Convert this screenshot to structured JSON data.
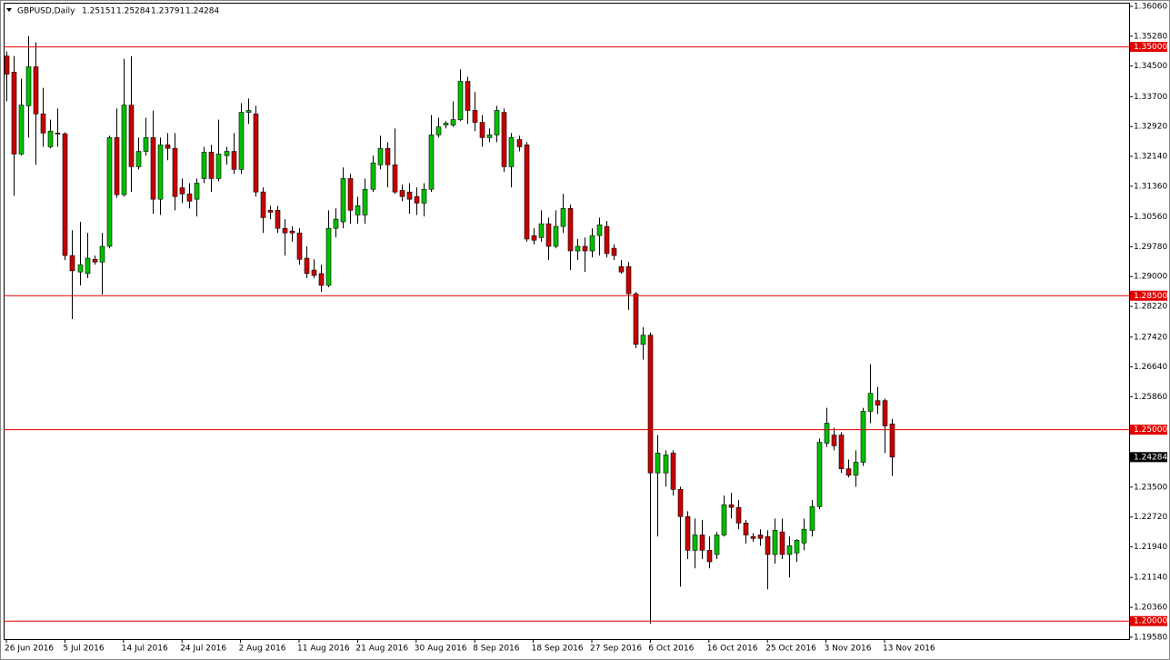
{
  "chart_data": {
    "type": "candlestick",
    "title": "GBPUSD,Daily",
    "categories": [
      "26 Jun 2016",
      null,
      null,
      null,
      null,
      null,
      null,
      null,
      "5 Jul 2016",
      null,
      null,
      null,
      null,
      null,
      null,
      null,
      "14 Jul 2016",
      null,
      null,
      null,
      null,
      null,
      null,
      null,
      "24 Jul 2016",
      null,
      null,
      null,
      null,
      null,
      null,
      null,
      "2 Aug 2016",
      null,
      null,
      null,
      null,
      null,
      null,
      null,
      "11 Aug 2016",
      null,
      null,
      null,
      null,
      null,
      null,
      null,
      "21 Aug 2016",
      null,
      null,
      null,
      null,
      null,
      null,
      null,
      "30 Aug 2016",
      null,
      null,
      null,
      null,
      null,
      null,
      null,
      "8 Sep 2016",
      null,
      null,
      null,
      null,
      null,
      null,
      null,
      "18 Sep 2016",
      null,
      null,
      null,
      null,
      null,
      null,
      null,
      "27 Sep 2016",
      null,
      null,
      null,
      null,
      null,
      null,
      null,
      "6 Oct 2016",
      null,
      null,
      null,
      null,
      null,
      null,
      null,
      "16 Oct 2016",
      null,
      null,
      null,
      null,
      null,
      null,
      null,
      "25 Oct 2016",
      null,
      null,
      null,
      null,
      null,
      null,
      null,
      "3 Nov 2016",
      null,
      null,
      null,
      null,
      null,
      null,
      null,
      "13 Nov 2016",
      null
    ],
    "open": [
      1.3476,
      1.3434,
      1.322,
      1.3346,
      1.3448,
      1.3325,
      1.3239,
      1.3275,
      1.3273,
      1.2955,
      1.2912,
      1.2908,
      1.2945,
      1.2938,
      1.2979,
      1.3263,
      1.3114,
      1.3348,
      1.3187,
      1.3227,
      1.3263,
      1.3102,
      1.3244,
      1.3235,
      1.3132,
      1.3116,
      1.3102,
      1.3156,
      1.3225,
      1.3156,
      1.3216,
      1.3227,
      1.318,
      1.3329,
      1.3325,
      1.3121,
      1.3073,
      1.3073,
      1.3026,
      1.3019,
      1.3014,
      1.2948,
      1.2917,
      1.2908,
      1.2877,
      1.3026,
      1.3043,
      1.3156,
      1.3061,
      1.3061,
      1.3128,
      1.3192,
      1.3235,
      1.3192,
      1.3125,
      1.3121,
      1.3109,
      1.3092,
      1.3128,
      1.327,
      1.3296,
      1.3296,
      1.331,
      1.341,
      1.3334,
      1.3303,
      1.3263,
      1.327,
      1.3329,
      1.3187,
      1.3258,
      1.3244,
      1.3007,
      1.3002,
      1.3038,
      1.2979,
      1.3031,
      1.3078,
      1.2967,
      1.2979,
      1.2967,
      1.3007,
      1.3031,
      1.2974,
      1.2926,
      1.2926,
      1.2855,
      1.2723,
      1.2747,
      1.2387,
      1.2387,
      1.2439,
      1.2344,
      1.2273,
      1.2185,
      1.2225,
      1.2185,
      1.2174,
      1.2225,
      1.2304,
      1.2297,
      1.2256,
      1.2221,
      1.2225,
      1.2221,
      1.2174,
      1.2233,
      1.2174,
      1.2178,
      1.2204,
      1.2237,
      1.2299,
      1.2465,
      1.2486,
      1.2486,
      1.2398,
      1.2381,
      1.2415,
      1.2548,
      1.2576,
      1.2576,
      1.25151
    ],
    "high": [
      1.3488,
      1.3476,
      1.3417,
      1.3528,
      1.3512,
      1.3393,
      1.331,
      1.3339,
      1.3277,
      1.3021,
      1.3043,
      1.3014,
      1.2955,
      1.3014,
      1.3268,
      1.3339,
      1.3469,
      1.3476,
      1.3263,
      1.3315,
      1.3334,
      1.3263,
      1.3275,
      1.3275,
      1.3156,
      1.3144,
      1.3156,
      1.3239,
      1.3244,
      1.331,
      1.3239,
      1.3275,
      1.3353,
      1.3365,
      1.3346,
      1.3133,
      1.3085,
      1.3085,
      1.305,
      1.3031,
      1.3026,
      1.2979,
      1.2945,
      1.2931,
      1.3073,
      1.3078,
      1.3185,
      1.3168,
      1.3109,
      1.3156,
      1.3216,
      1.3268,
      1.3251,
      1.3287,
      1.314,
      1.3144,
      1.3133,
      1.3144,
      1.3322,
      1.3315,
      1.3306,
      1.3358,
      1.3441,
      1.3422,
      1.3382,
      1.3322,
      1.3287,
      1.3346,
      1.3339,
      1.3275,
      1.3268,
      1.3251,
      1.3026,
      1.3073,
      1.3054,
      1.3073,
      1.3116,
      1.3088,
      1.2998,
      1.3002,
      1.3026,
      1.3054,
      1.3045,
      1.2984,
      1.2943,
      1.2938,
      1.286,
      1.2768,
      1.2754,
      1.2486,
      1.2446,
      1.2446,
      1.2351,
      1.2287,
      1.2268,
      1.2264,
      1.2221,
      1.2233,
      1.2328,
      1.2335,
      1.2316,
      1.2264,
      1.223,
      1.224,
      1.2237,
      1.2268,
      1.2268,
      1.2221,
      1.2214,
      1.2268,
      1.2316,
      1.2477,
      1.2557,
      1.2505,
      1.2493,
      1.2422,
      1.2446,
      1.2557,
      1.2671,
      1.2612,
      1.2581,
      1.25284
    ],
    "low": [
      1.3358,
      1.3111,
      1.3216,
      1.3263,
      1.3192,
      1.3239,
      1.3235,
      1.3239,
      1.2943,
      1.2789,
      1.2877,
      1.2896,
      1.2931,
      1.2853,
      1.2974,
      1.3106,
      1.3109,
      1.3121,
      1.318,
      1.3216,
      1.3064,
      1.3061,
      1.3204,
      1.3073,
      1.3092,
      1.3078,
      1.3057,
      1.3144,
      1.3121,
      1.3149,
      1.3192,
      1.3168,
      1.3168,
      1.3299,
      1.3109,
      1.3014,
      1.305,
      1.3014,
      1.2955,
      1.2991,
      1.2931,
      1.2896,
      1.2896,
      1.286,
      1.2872,
      1.3002,
      1.3026,
      1.3038,
      1.3038,
      1.3038,
      1.3121,
      1.318,
      1.3133,
      1.3116,
      1.3097,
      1.3064,
      1.3061,
      1.3057,
      1.3121,
      1.3263,
      1.3287,
      1.3291,
      1.3306,
      1.3299,
      1.328,
      1.3239,
      1.3251,
      1.3251,
      1.3173,
      1.3133,
      1.3227,
      1.2991,
      1.2984,
      1.2991,
      1.2943,
      1.2974,
      1.3014,
      1.2917,
      1.2943,
      1.2912,
      1.295,
      1.2955,
      1.295,
      1.2943,
      1.2908,
      1.2813,
      1.2713,
      1.2683,
      1.1993,
      1.2221,
      1.2351,
      1.2328,
      1.209,
      1.2162,
      1.2138,
      1.2162,
      1.2138,
      1.2162,
      1.2221,
      1.2268,
      1.224,
      1.2202,
      1.2207,
      1.2197,
      1.2083,
      1.215,
      1.2162,
      1.2114,
      1.2155,
      1.2185,
      1.2221,
      1.2292,
      1.2455,
      1.2446,
      1.2387,
      1.2375,
      1.2351,
      1.2405,
      1.2517,
      1.2541,
      1.2439,
      1.23791
    ],
    "close": [
      1.3429,
      1.322,
      1.3348,
      1.3448,
      1.3325,
      1.3275,
      1.328,
      1.3273,
      1.2955,
      1.2915,
      1.2931,
      1.2948,
      1.2938,
      1.2979,
      1.3263,
      1.3114,
      1.3348,
      1.3187,
      1.3227,
      1.3263,
      1.3102,
      1.3244,
      1.3235,
      1.3109,
      1.3116,
      1.3097,
      1.3144,
      1.3225,
      1.3156,
      1.322,
      1.3227,
      1.318,
      1.3329,
      1.3334,
      1.3121,
      1.3054,
      1.3068,
      1.3026,
      1.3014,
      1.3014,
      1.2945,
      1.2908,
      1.2903,
      1.2877,
      1.3026,
      1.305,
      1.3156,
      1.3073,
      1.3085,
      1.3128,
      1.3197,
      1.3235,
      1.3192,
      1.3121,
      1.3109,
      1.3102,
      1.3092,
      1.3128,
      1.327,
      1.3291,
      1.3301,
      1.331,
      1.341,
      1.3334,
      1.3303,
      1.3263,
      1.327,
      1.3334,
      1.3187,
      1.3263,
      1.3239,
      1.2998,
      1.2995,
      1.3038,
      1.2979,
      1.3031,
      1.3078,
      1.2967,
      1.2979,
      1.2967,
      1.3007,
      1.3035,
      1.296,
      1.2955,
      1.2912,
      1.2855,
      1.2723,
      1.2747,
      1.2387,
      1.2439,
      1.2434,
      1.2344,
      1.2273,
      1.2185,
      1.2225,
      1.2185,
      1.2155,
      1.2225,
      1.2304,
      1.2297,
      1.2256,
      1.2225,
      1.2216,
      1.2216,
      1.2174,
      1.2237,
      1.2174,
      1.2197,
      1.2211,
      1.224,
      1.2299,
      1.2467,
      1.2517,
      1.2458,
      1.2398,
      1.2381,
      1.2415,
      1.2548,
      1.2595,
      1.2564,
      1.251,
      1.24284
    ],
    "up_color": "#00c000",
    "down_color": "#c80000",
    "levels": [
      {
        "value": 1.35,
        "label": "1.35000"
      },
      {
        "value": 1.285,
        "label": "1.28500"
      },
      {
        "value": 1.25,
        "label": "1.25000"
      },
      {
        "value": 1.2,
        "label": "1.20000"
      }
    ],
    "level_color": "#e00000",
    "ylim": [
      1.1953,
      1.3613
    ],
    "yticks": [
      {
        "value": 1.3606,
        "label": "1.36060"
      },
      {
        "value": 1.3528,
        "label": "1.35280"
      },
      {
        "value": 1.345,
        "label": "1.34500"
      },
      {
        "value": 1.337,
        "label": "1.33700"
      },
      {
        "value": 1.3292,
        "label": "1.32920"
      },
      {
        "value": 1.3214,
        "label": "1.32140"
      },
      {
        "value": 1.3136,
        "label": "1.31360"
      },
      {
        "value": 1.3056,
        "label": "1.30560"
      },
      {
        "value": 1.2978,
        "label": "1.29780"
      },
      {
        "value": 1.29,
        "label": "1.29000"
      },
      {
        "value": 1.2822,
        "label": "1.28220"
      },
      {
        "value": 1.2742,
        "label": "1.27420"
      },
      {
        "value": 1.2664,
        "label": "1.26640"
      },
      {
        "value": 1.2586,
        "label": "1.25860"
      },
      {
        "value": 1.235,
        "label": "1.23500"
      },
      {
        "value": 1.2272,
        "label": "1.22720"
      },
      {
        "value": 1.2194,
        "label": "1.21940"
      },
      {
        "value": 1.2114,
        "label": "1.21140"
      },
      {
        "value": 1.2036,
        "label": "1.20360"
      },
      {
        "value": 1.1958,
        "label": "1.19580"
      }
    ],
    "grid": false
  }
}
